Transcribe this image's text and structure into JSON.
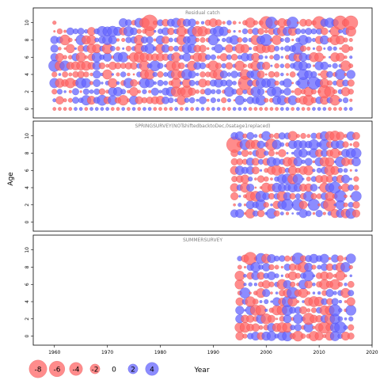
{
  "chart_data": {
    "type": "bubble-residuals",
    "xlabel": "Year",
    "ylabel": "Age",
    "xlim": [
      1956,
      2020
    ],
    "ylim": [
      -0.5,
      10.8
    ],
    "x_ticks": [
      1960,
      1970,
      1980,
      1990,
      2000,
      2010,
      2020
    ],
    "y_ticks": [
      0,
      2,
      4,
      6,
      8,
      10
    ],
    "grid": false,
    "colors": {
      "positive": "#6666ff",
      "negative": "#ff6666",
      "positive_edge": "#3333cc",
      "negative_edge": "#cc3333"
    },
    "legend": {
      "placement": "bottom-left",
      "entries": [
        {
          "value": -8,
          "label": "-8"
        },
        {
          "value": -6,
          "label": "-6"
        },
        {
          "value": -4,
          "label": "-4"
        },
        {
          "value": -2,
          "label": "-2"
        },
        {
          "value": 0,
          "label": "0"
        },
        {
          "value": 2,
          "label": "2"
        },
        {
          "value": 4,
          "label": "4"
        }
      ]
    },
    "panels": [
      {
        "title": "Residual catch",
        "years": [
          1960,
          2016
        ],
        "ages": [
          0,
          10
        ],
        "highlights": [
          {
            "x": 1978,
            "y": 10,
            "value": -8
          },
          {
            "x": 1996,
            "y": 3,
            "value": -6
          },
          {
            "x": 2014,
            "y": 10,
            "value": -6
          },
          {
            "x": 2016,
            "y": 10,
            "value": -6
          },
          {
            "x": 2010,
            "y": 10,
            "value": -5
          },
          {
            "x": 2000,
            "y": 10,
            "value": -5
          },
          {
            "x": 1960,
            "y": 5,
            "value": 4
          },
          {
            "x": 2009,
            "y": 3,
            "value": 5
          },
          {
            "x": 2007,
            "y": 3,
            "value": 4
          },
          {
            "x": 2011,
            "y": 2,
            "value": -5
          },
          {
            "x": 1985,
            "y": 2,
            "value": -4
          },
          {
            "x": 2001,
            "y": 10,
            "value": 4
          },
          {
            "x": 2005,
            "y": 10,
            "value": 4
          },
          {
            "x": 2006,
            "y": 7,
            "value": 4
          },
          {
            "x": 2000,
            "y": 8,
            "value": 4
          }
        ]
      },
      {
        "title": "SPRINGSURVEY(NOTshiftedbacktoDec,0satage1replaced)",
        "years": [
          1994,
          2017
        ],
        "ages": [
          1,
          10
        ],
        "highlights": [
          {
            "x": 1994,
            "y": 9,
            "value": -8
          },
          {
            "x": 2001,
            "y": 9,
            "value": -4
          },
          {
            "x": 2004,
            "y": 2,
            "value": 4
          },
          {
            "x": 2012,
            "y": 2,
            "value": -5
          },
          {
            "x": 2013,
            "y": 4,
            "value": 4
          },
          {
            "x": 2014,
            "y": 3,
            "value": 4
          },
          {
            "x": 2016,
            "y": 1,
            "value": 3
          },
          {
            "x": 2009,
            "y": 2,
            "value": 4
          },
          {
            "x": 2006,
            "y": 2,
            "value": 4
          }
        ]
      },
      {
        "title": "SUMMERSURVEY",
        "years": [
          1995,
          2016
        ],
        "ages": [
          0,
          9
        ],
        "highlights": [
          {
            "x": 1997,
            "y": 9,
            "value": -5
          },
          {
            "x": 2006,
            "y": 9,
            "value": 4
          },
          {
            "x": 2011,
            "y": 1,
            "value": -4
          },
          {
            "x": 2014,
            "y": 1,
            "value": 4
          },
          {
            "x": 2013,
            "y": 3,
            "value": 4
          },
          {
            "x": 2008,
            "y": 2,
            "value": -4
          },
          {
            "x": 2005,
            "y": 5,
            "value": 4
          }
        ]
      }
    ]
  }
}
